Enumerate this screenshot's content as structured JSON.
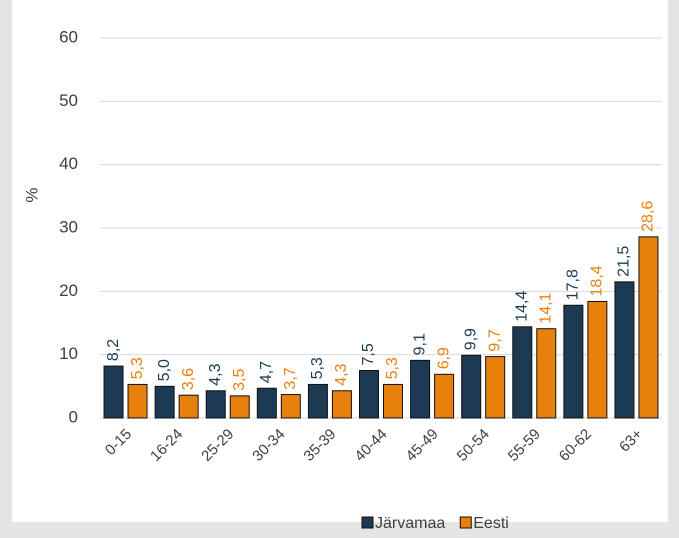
{
  "chart_data": {
    "type": "bar",
    "categories": [
      "0-15",
      "16-24",
      "25-29",
      "30-34",
      "35-39",
      "40-44",
      "45-49",
      "50-54",
      "55-59",
      "60-62",
      "63+"
    ],
    "series": [
      {
        "name": "Järvamaa",
        "color": "#1d3a55",
        "label_color": "#1d3a55",
        "values": [
          8.2,
          5.0,
          4.3,
          4.7,
          5.3,
          7.5,
          9.1,
          9.9,
          14.4,
          17.8,
          21.5
        ],
        "value_labels": [
          "8,2",
          "5,0",
          "4,3",
          "4,7",
          "5,3",
          "7,5",
          "9,1",
          "9,9",
          "14,4",
          "17,8",
          "21,5"
        ]
      },
      {
        "name": "Eesti",
        "color": "#e8800e",
        "label_color": "#e8800e",
        "values": [
          5.3,
          3.6,
          3.5,
          3.7,
          4.3,
          5.3,
          6.9,
          9.7,
          14.1,
          18.4,
          28.6
        ],
        "value_labels": [
          "5,3",
          "3,6",
          "3,5",
          "3,7",
          "4,3",
          "5,3",
          "6,9",
          "9,7",
          "14,1",
          "18,4",
          "28,6"
        ]
      }
    ],
    "y_label": "%",
    "ylim": [
      0,
      60
    ],
    "yticks": [
      0,
      10,
      20,
      30,
      40,
      50,
      60
    ],
    "grid": true,
    "legend": "bottom"
  }
}
